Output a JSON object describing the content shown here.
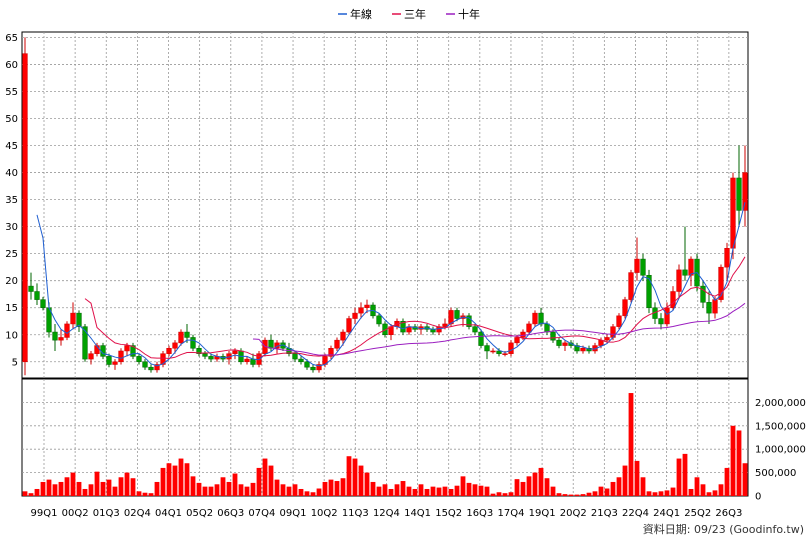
{
  "credit": "資料日期: 09/23 (Goodinfo.tw)",
  "legend": [
    {
      "name": "年線",
      "color": "#1f5fd1"
    },
    {
      "name": "三年",
      "color": "#e0104a"
    },
    {
      "name": "十年",
      "color": "#9b1fc0"
    }
  ],
  "chart_data": [
    {
      "type": "candlestick",
      "ylim": [
        2,
        66
      ],
      "y_ticks": [
        5,
        10,
        15,
        20,
        25,
        30,
        35,
        40,
        45,
        50,
        55,
        60,
        65
      ],
      "x_ticks": [
        "99Q1",
        "00Q2",
        "01Q3",
        "02Q4",
        "04Q1",
        "05Q2",
        "06Q3",
        "07Q4",
        "09Q1",
        "10Q2",
        "11Q3",
        "12Q4",
        "14Q1",
        "15Q2",
        "16Q3",
        "17Q4",
        "19Q1",
        "20Q2",
        "21Q3",
        "22Q4",
        "24Q1",
        "25Q2",
        "26Q3"
      ],
      "grid": true,
      "candles": [
        [
          5,
          65,
          2.5,
          62
        ],
        [
          19,
          21.5,
          16.5,
          18
        ],
        [
          18,
          19.5,
          15.5,
          16.5
        ],
        [
          16.5,
          17,
          14.5,
          15
        ],
        [
          15,
          16,
          9.5,
          10.5
        ],
        [
          10.5,
          12,
          7,
          9
        ],
        [
          9,
          11,
          8,
          9.5
        ],
        [
          9.5,
          12.5,
          9,
          12
        ],
        [
          12,
          16,
          11,
          14
        ],
        [
          14,
          14.5,
          10.5,
          11.5
        ],
        [
          11.5,
          12,
          5,
          5.5
        ],
        [
          5.5,
          7,
          4.5,
          6.5
        ],
        [
          6.5,
          8.5,
          6,
          8
        ],
        [
          8,
          8.5,
          5.5,
          6
        ],
        [
          6,
          6.5,
          4,
          4.5
        ],
        [
          4.5,
          5.5,
          3.5,
          5
        ],
        [
          5,
          7.5,
          4.5,
          7
        ],
        [
          7,
          8.5,
          6,
          8
        ],
        [
          8,
          8.5,
          5.5,
          6
        ],
        [
          6,
          6.5,
          4.5,
          5
        ],
        [
          5,
          5.5,
          3.5,
          4
        ],
        [
          4,
          4.5,
          3,
          3.5
        ],
        [
          3.5,
          5,
          3,
          4.5
        ],
        [
          4.5,
          7,
          4,
          6.5
        ],
        [
          6.5,
          8,
          6,
          7.5
        ],
        [
          7.5,
          9,
          6.5,
          8.5
        ],
        [
          8.5,
          11,
          8,
          10.5
        ],
        [
          10.5,
          12,
          8.5,
          9.5
        ],
        [
          9.5,
          10,
          7,
          7.5
        ],
        [
          7.5,
          8,
          6,
          6.5
        ],
        [
          6.5,
          7,
          5.5,
          6
        ],
        [
          6,
          6.5,
          5,
          5.5
        ],
        [
          5.5,
          6.5,
          5,
          6
        ],
        [
          6,
          6.5,
          5,
          5.5
        ],
        [
          5.5,
          7,
          4.5,
          6.5
        ],
        [
          6.5,
          7.5,
          5.5,
          7
        ],
        [
          7,
          7.5,
          4.5,
          5
        ],
        [
          5,
          6,
          4.5,
          5.5
        ],
        [
          5.5,
          6.5,
          4,
          4.5
        ],
        [
          4.5,
          7,
          4,
          6.5
        ],
        [
          6.5,
          9.5,
          6,
          9
        ],
        [
          9,
          10,
          7,
          7.5
        ],
        [
          7.5,
          9,
          6.5,
          8.5
        ],
        [
          8.5,
          9,
          7,
          7.5
        ],
        [
          7.5,
          8.5,
          6,
          6.5
        ],
        [
          6.5,
          7,
          5,
          5.5
        ],
        [
          5.5,
          6,
          4.5,
          5
        ],
        [
          5,
          5.5,
          3.5,
          4
        ],
        [
          4,
          4.5,
          3,
          3.5
        ],
        [
          3.5,
          5,
          3,
          4.5
        ],
        [
          4.5,
          6.5,
          4,
          6
        ],
        [
          6,
          8,
          5.5,
          7.5
        ],
        [
          7.5,
          9.5,
          7,
          9
        ],
        [
          9,
          11,
          8,
          10.5
        ],
        [
          10.5,
          13.5,
          10,
          13
        ],
        [
          13,
          15,
          12,
          14
        ],
        [
          14,
          16,
          13,
          15
        ],
        [
          15,
          16.5,
          14,
          15.5
        ],
        [
          15.5,
          16,
          13,
          13.5
        ],
        [
          13.5,
          14,
          11.5,
          12
        ],
        [
          12,
          12.5,
          9.5,
          10
        ],
        [
          10,
          12,
          9,
          11.5
        ],
        [
          11.5,
          13,
          11,
          12.5
        ],
        [
          12.5,
          13,
          10,
          10.5
        ],
        [
          10.5,
          12,
          10,
          11.5
        ],
        [
          11.5,
          12,
          10.5,
          11
        ],
        [
          11,
          12,
          10,
          11.5
        ],
        [
          11.5,
          12,
          10.5,
          11
        ],
        [
          11,
          11.5,
          10,
          10.5
        ],
        [
          10.5,
          12,
          10,
          11.5
        ],
        [
          11.5,
          13,
          11,
          12
        ],
        [
          12,
          15,
          11.5,
          14.5
        ],
        [
          14.5,
          15,
          12.5,
          13
        ],
        [
          13,
          14,
          11.5,
          13.5
        ],
        [
          13.5,
          14,
          11,
          11.5
        ],
        [
          11.5,
          12,
          10,
          10.5
        ],
        [
          10.5,
          11,
          7.5,
          8
        ],
        [
          8,
          8.5,
          5.5,
          7
        ],
        [
          7,
          7.5,
          6.5,
          7
        ],
        [
          7,
          7.5,
          6,
          6.5
        ],
        [
          6.5,
          7,
          6,
          6.5
        ],
        [
          6.5,
          9,
          6,
          8.5
        ],
        [
          8.5,
          10,
          8,
          9.5
        ],
        [
          9.5,
          11,
          9,
          10.5
        ],
        [
          10.5,
          12.5,
          10,
          12
        ],
        [
          12,
          14.5,
          11.5,
          14
        ],
        [
          14,
          15,
          11.5,
          12
        ],
        [
          12,
          12.5,
          10,
          10.5
        ],
        [
          10.5,
          11,
          8.5,
          9
        ],
        [
          9,
          9.5,
          7.5,
          8
        ],
        [
          8,
          9,
          7,
          8.5
        ],
        [
          8.5,
          9,
          7.5,
          8
        ],
        [
          8,
          8.5,
          6.5,
          7
        ],
        [
          7,
          8,
          6.5,
          7.5
        ],
        [
          7.5,
          8,
          6.5,
          7
        ],
        [
          7,
          8.5,
          6.5,
          8
        ],
        [
          8,
          9.5,
          7.5,
          9
        ],
        [
          9,
          10,
          8.5,
          9.5
        ],
        [
          9.5,
          12,
          9,
          11.5
        ],
        [
          11.5,
          14,
          11,
          13.5
        ],
        [
          13.5,
          17,
          13,
          16.5
        ],
        [
          16.5,
          22,
          16,
          21.5
        ],
        [
          21.5,
          28,
          20,
          24
        ],
        [
          24,
          25,
          20,
          21
        ],
        [
          21,
          22,
          14,
          15
        ],
        [
          15,
          16,
          12,
          13
        ],
        [
          13,
          14,
          11,
          12
        ],
        [
          12,
          16,
          11.5,
          15
        ],
        [
          15,
          19,
          14.5,
          18
        ],
        [
          18,
          23,
          17,
          22
        ],
        [
          22,
          30,
          20,
          21
        ],
        [
          21,
          24.5,
          19,
          24
        ],
        [
          24,
          25,
          18,
          19
        ],
        [
          19,
          20,
          15,
          16
        ],
        [
          16,
          18,
          12,
          14
        ],
        [
          14,
          17,
          13,
          16.5
        ],
        [
          16.5,
          23,
          16,
          22.5
        ],
        [
          22.5,
          27,
          20,
          26
        ],
        [
          26,
          40,
          24,
          39
        ],
        [
          39,
          45,
          30,
          33
        ],
        [
          33,
          45,
          30,
          40
        ]
      ],
      "volumes": [
        100000,
        60000,
        150000,
        300000,
        350000,
        250000,
        300000,
        400000,
        500000,
        300000,
        150000,
        250000,
        520000,
        300000,
        350000,
        200000,
        400000,
        500000,
        380000,
        100000,
        70000,
        60000,
        300000,
        600000,
        700000,
        650000,
        800000,
        700000,
        420000,
        280000,
        200000,
        200000,
        250000,
        400000,
        300000,
        480000,
        250000,
        200000,
        280000,
        600000,
        800000,
        650000,
        350000,
        250000,
        200000,
        250000,
        150000,
        100000,
        80000,
        160000,
        300000,
        350000,
        320000,
        380000,
        850000,
        800000,
        650000,
        500000,
        300000,
        200000,
        250000,
        150000,
        250000,
        320000,
        200000,
        150000,
        250000,
        150000,
        200000,
        180000,
        200000,
        150000,
        220000,
        420000,
        280000,
        250000,
        220000,
        200000,
        50000,
        80000,
        60000,
        80000,
        360000,
        300000,
        420000,
        500000,
        600000,
        380000,
        200000,
        60000,
        40000,
        30000,
        30000,
        40000,
        70000,
        100000,
        200000,
        160000,
        300000,
        400000,
        650000,
        2200000,
        750000,
        400000,
        100000,
        80000,
        100000,
        120000,
        180000,
        800000,
        900000,
        150000,
        400000,
        250000,
        80000,
        120000,
        250000,
        600000,
        1500000,
        1400000,
        700000
      ],
      "volume_ticks": [
        0,
        500000,
        1000000,
        1500000,
        2000000
      ],
      "volume_tick_labels": [
        "0",
        "500,000",
        "1,000,000",
        "1,500,000",
        "2,000,000"
      ]
    }
  ]
}
